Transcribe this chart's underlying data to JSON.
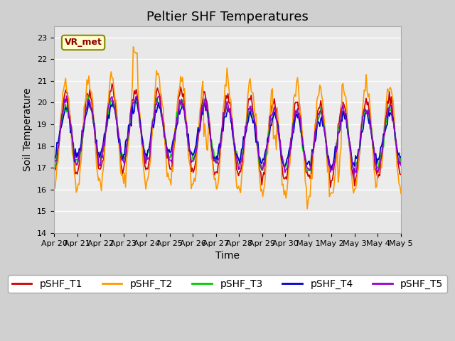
{
  "title": "Peltier SHF Temperatures",
  "xlabel": "Time",
  "ylabel": "Soil Temperature",
  "ylim": [
    14.0,
    23.5
  ],
  "yticks": [
    14.0,
    15.0,
    16.0,
    17.0,
    18.0,
    19.0,
    20.0,
    21.0,
    22.0,
    23.0
  ],
  "date_labels": [
    "Apr 20",
    "Apr 21",
    "Apr 22",
    "Apr 23",
    "Apr 24",
    "Apr 25",
    "Apr 26",
    "Apr 27",
    "Apr 28",
    "Apr 29",
    "Apr 30",
    "May 1",
    "May 2",
    "May 3",
    "May 4",
    "May 5"
  ],
  "annotation_text": "VR_met",
  "series_colors": [
    "#cc0000",
    "#ff9900",
    "#00cc00",
    "#0000cc",
    "#9900cc"
  ],
  "series_labels": [
    "pSHF_T1",
    "pSHF_T2",
    "pSHF_T3",
    "pSHF_T4",
    "pSHF_T5"
  ],
  "title_fontsize": 13,
  "legend_fontsize": 10,
  "axis_fontsize": 10
}
